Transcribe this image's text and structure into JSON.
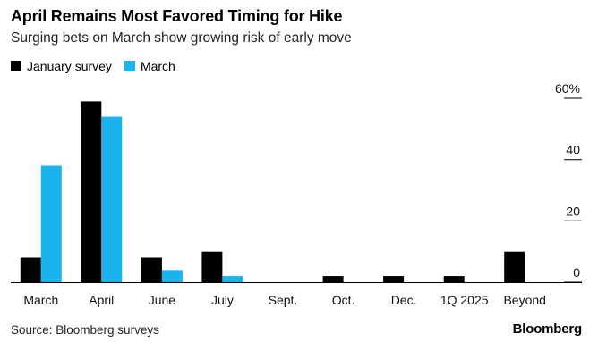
{
  "chart_data": {
    "type": "bar",
    "title": "April Remains Most Favored Timing for Hike",
    "subtitle": "Surging bets on March show growing risk of early move",
    "categories": [
      "March",
      "April",
      "June",
      "July",
      "Sept.",
      "Oct.",
      "Dec.",
      "1Q 2025",
      "Beyond"
    ],
    "series": [
      {
        "name": "January survey",
        "color": "#000000",
        "values": [
          8,
          59,
          8,
          10,
          0,
          2,
          2,
          2,
          10
        ]
      },
      {
        "name": "March",
        "color": "#1ab3ec",
        "values": [
          38,
          54,
          4,
          2,
          0,
          0,
          0,
          0,
          0
        ]
      }
    ],
    "ylim": [
      0,
      60
    ],
    "yticks": [
      0,
      20,
      40,
      60
    ],
    "ytick_labels": [
      "0",
      "20",
      "40",
      "60%"
    ],
    "y_axis_position": "right",
    "legend_position": "top-left",
    "grid": false
  },
  "source": "Source: Bloomberg surveys",
  "brand": "Bloomberg"
}
